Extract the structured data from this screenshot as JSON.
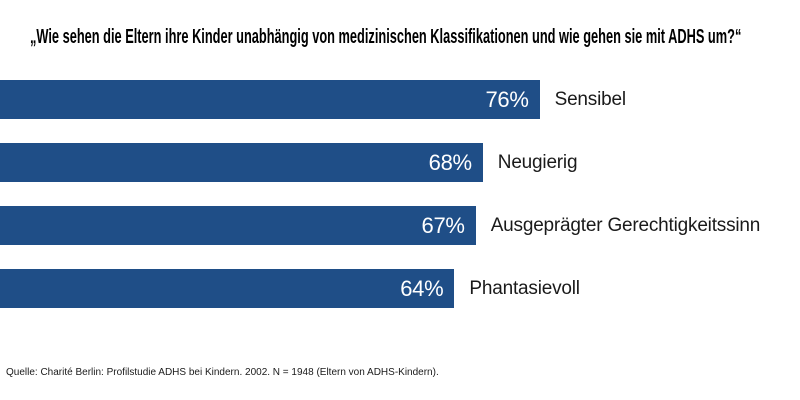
{
  "title": {
    "text": "„Wie sehen die Eltern ihre Kinder unabhängig von medizinischen Klassifikationen und wie gehen sie mit ADHS um?“"
  },
  "source": {
    "text": "Quelle: Charité Berlin: Profilstudie ADHS bei Kindern. 2002. N = 1948 (Eltern von ADHS-Kindern)."
  },
  "colors": {
    "bar_fill": "#1F4E87",
    "value_label": "#FFFFFF",
    "category_label": "#1A1A1A",
    "background": "#FFFFFF"
  },
  "chart_data": {
    "type": "bar",
    "orientation": "horizontal",
    "title": "„Wie sehen die Eltern ihre Kinder unabhängig von medizinischen Klassifikationen und wie gehen sie mit ADHS um?“",
    "categories": [
      "Sensibel",
      "Neugierig",
      "Ausgeprägter Gerechtigkeitssinn",
      "Phantasievoll"
    ],
    "values": [
      76,
      68,
      67,
      64
    ],
    "unit": "%",
    "value_labels": [
      "76%",
      "68%",
      "67%",
      "64%"
    ],
    "xlim": [
      0,
      100
    ],
    "grid": false,
    "legend": false,
    "bar_color": "#1F4E87",
    "value_label_position": "inside-end",
    "category_label_position": "outside-end",
    "source": "Quelle: Charité Berlin: Profilstudie ADHS bei Kindern. 2002. N = 1948 (Eltern von ADHS-Kindern)."
  }
}
